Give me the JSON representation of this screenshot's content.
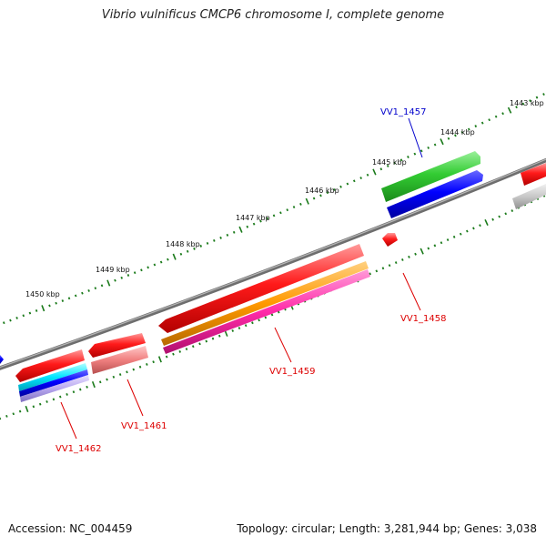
{
  "title": "Vibrio vulnificus CMCP6 chromosome I, complete genome",
  "footer": {
    "accession": "Accession: NC_004459",
    "summary": "Topology: circular; Length: 3,281,944 bp; Genes: 3,038"
  },
  "colors": {
    "backbone": "#7a7a7a",
    "tick": "#1a7a1a",
    "forward_label": "#0000cc",
    "reverse_label": "#dd0000"
  },
  "tick_labels": [
    "1443 kbp",
    "1444 kbp",
    "1445 kbp",
    "1446 kbp",
    "1447 kbp",
    "1448 kbp",
    "1449 kbp",
    "1450 kbp"
  ],
  "gene_labels": [
    "VV1_1457",
    "VV1_1458",
    "VV1_1459",
    "VV1_1461",
    "VV1_1462"
  ]
}
